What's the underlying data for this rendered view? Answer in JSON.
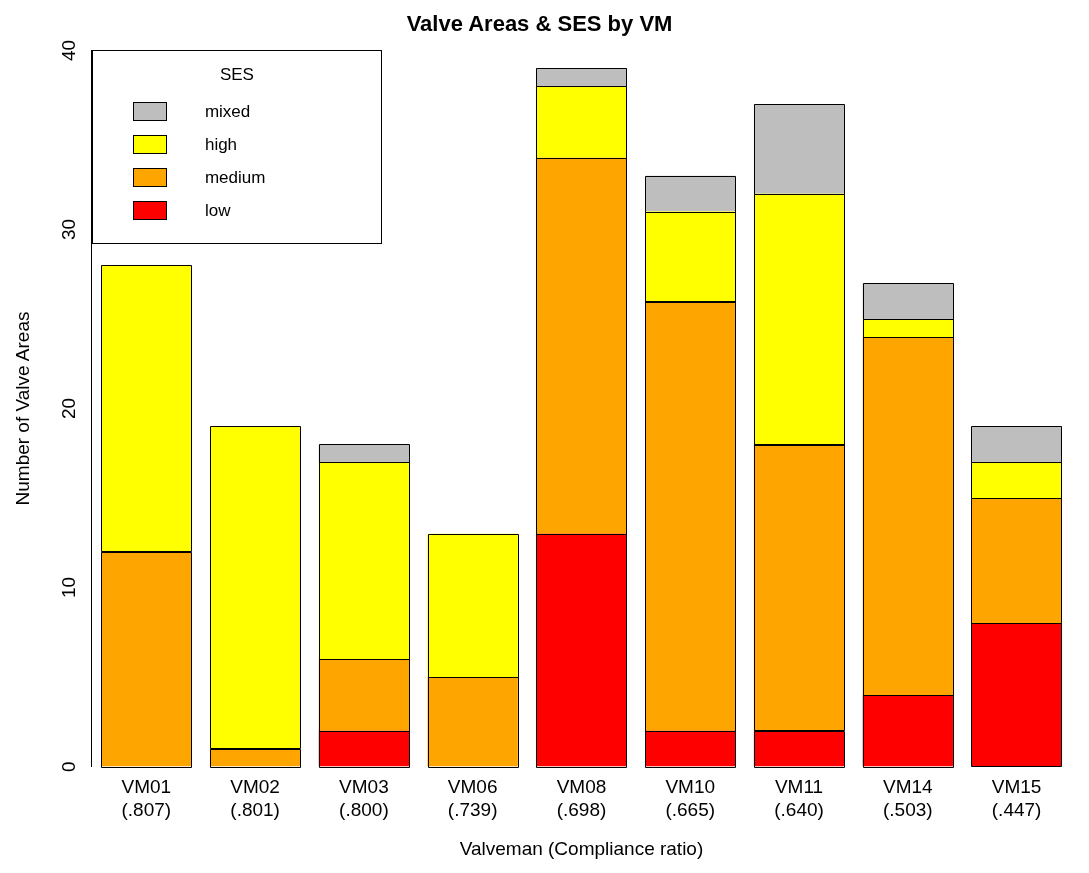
{
  "chart_data": {
    "type": "bar",
    "stacked": true,
    "title": "Valve Areas & SES by VM",
    "xlabel": "Valveman (Compliance ratio)",
    "ylabel": "Number of Valve Areas",
    "legend_title": "SES",
    "legend": "top left",
    "grid": false,
    "categories": [
      "VM01\n(.807)",
      "VM02\n(.801)",
      "VM03\n(.800)",
      "VM06\n(.739)",
      "VM08\n(.698)",
      "VM10\n(.665)",
      "VM11\n(.640)",
      "VM14\n(.503)",
      "VM15\n(.447)"
    ],
    "ylim": [
      0,
      40
    ],
    "yticks": [
      0,
      10,
      20,
      30,
      40
    ],
    "series": [
      {
        "name": "low",
        "color": "#ff0000",
        "values": [
          0,
          0,
          2,
          0,
          13,
          2,
          2,
          4,
          8
        ]
      },
      {
        "name": "medium",
        "color": "#ffa500",
        "values": [
          12,
          1,
          4,
          5,
          21,
          24,
          16,
          20,
          7
        ]
      },
      {
        "name": "high",
        "color": "#ffff00",
        "values": [
          16,
          18,
          11,
          8,
          4,
          5,
          14,
          1,
          2
        ]
      },
      {
        "name": "mixed",
        "color": "#bebebe",
        "values": [
          0,
          0,
          1,
          0,
          1,
          2,
          5,
          2,
          2
        ]
      }
    ]
  }
}
